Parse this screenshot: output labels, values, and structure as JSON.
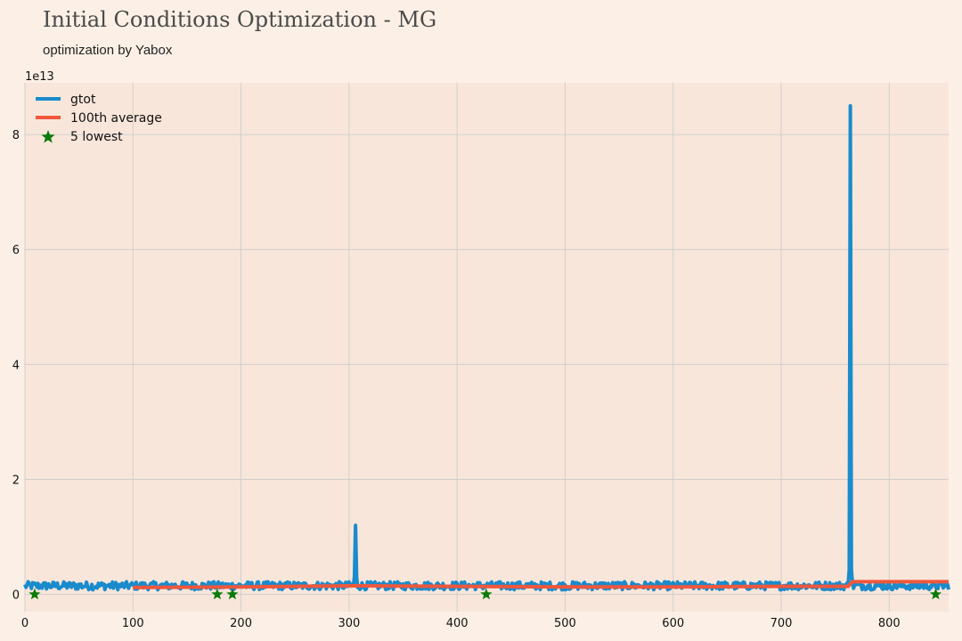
{
  "title": "Initial Conditions Optimization - MG",
  "subtitle": "optimization by Yabox",
  "colors": {
    "background": "#fcf0e6",
    "plot_background": "#f9e6da",
    "grid": "#cfcfcf",
    "gtot": "#1a8bcc",
    "average": "#f0573c",
    "lowest": "#0a7a0a"
  },
  "chart_data": {
    "type": "line",
    "title": "Initial Conditions Optimization - MG",
    "subtitle": "optimization by Yabox",
    "y_offset_label": "1e13",
    "xlim": [
      0,
      855
    ],
    "ylim": [
      -0.3,
      8.9
    ],
    "x_ticks": [
      0,
      100,
      200,
      300,
      400,
      500,
      600,
      700,
      800
    ],
    "y_ticks": [
      0,
      2,
      4,
      6,
      8
    ],
    "grid": true,
    "legend_position": "top-left",
    "legend": [
      "gtot",
      "100th average",
      "5 lowest"
    ],
    "series": [
      {
        "name": "gtot",
        "style": "line",
        "baseline": 0.15,
        "noise": 0.07,
        "x_end": 855,
        "spikes": [
          {
            "x": 306,
            "y": 1.2
          },
          {
            "x": 764,
            "y": 8.5
          }
        ]
      },
      {
        "name": "100th average",
        "style": "line",
        "points": [
          [
            100,
            0.12
          ],
          [
            200,
            0.13
          ],
          [
            306,
            0.15
          ],
          [
            400,
            0.14
          ],
          [
            500,
            0.13
          ],
          [
            600,
            0.13
          ],
          [
            700,
            0.14
          ],
          [
            762,
            0.14
          ],
          [
            766,
            0.22
          ],
          [
            855,
            0.22
          ]
        ]
      },
      {
        "name": "5 lowest",
        "style": "scatter",
        "points": [
          [
            9,
            0.0
          ],
          [
            178,
            0.0
          ],
          [
            192,
            0.0
          ],
          [
            427,
            0.0
          ],
          [
            843,
            0.0
          ]
        ]
      }
    ]
  }
}
